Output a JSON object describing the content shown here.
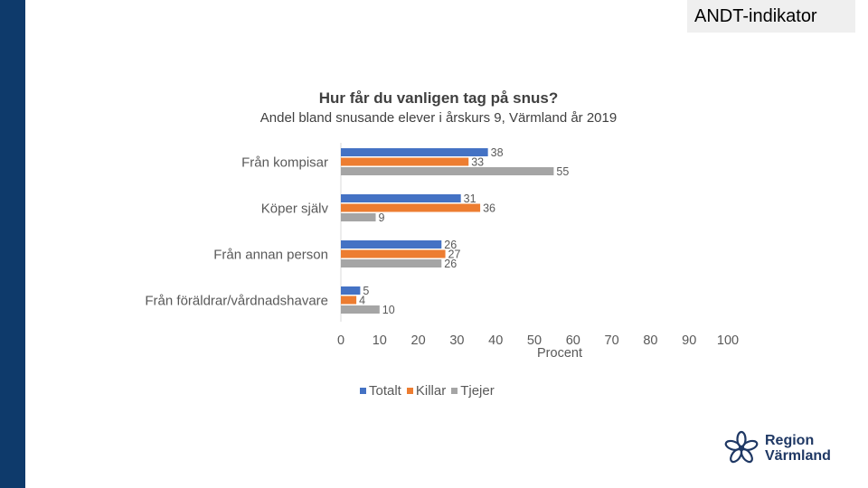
{
  "badge": "ANDT-indikator",
  "logo": {
    "line1": "Region",
    "line2": "Värmland"
  },
  "colors": {
    "sidebar": "#0e3a6b",
    "totalt": "#4472c4",
    "killar": "#ed7d31",
    "tjejer": "#a5a5a5"
  },
  "chart_data": {
    "type": "bar",
    "orientation": "horizontal",
    "title": "Hur får du vanligen tag på snus?",
    "subtitle": "Andel bland snusande elever i årskurs 9, Värmland år 2019",
    "categories": [
      "Från kompisar",
      "Köper själv",
      "Från annan person",
      "Från föräldrar/vårdnadshavare"
    ],
    "series": [
      {
        "name": "Totalt",
        "values": [
          38,
          31,
          26,
          5
        ]
      },
      {
        "name": "Killar",
        "values": [
          33,
          36,
          27,
          4
        ]
      },
      {
        "name": "Tjejer",
        "values": [
          55,
          9,
          26,
          10
        ]
      }
    ],
    "xlabel": "Procent",
    "xlim": [
      0,
      100
    ],
    "xticks": [
      0,
      10,
      20,
      30,
      40,
      50,
      60,
      70,
      80,
      90,
      100
    ],
    "legend": "bottom"
  }
}
